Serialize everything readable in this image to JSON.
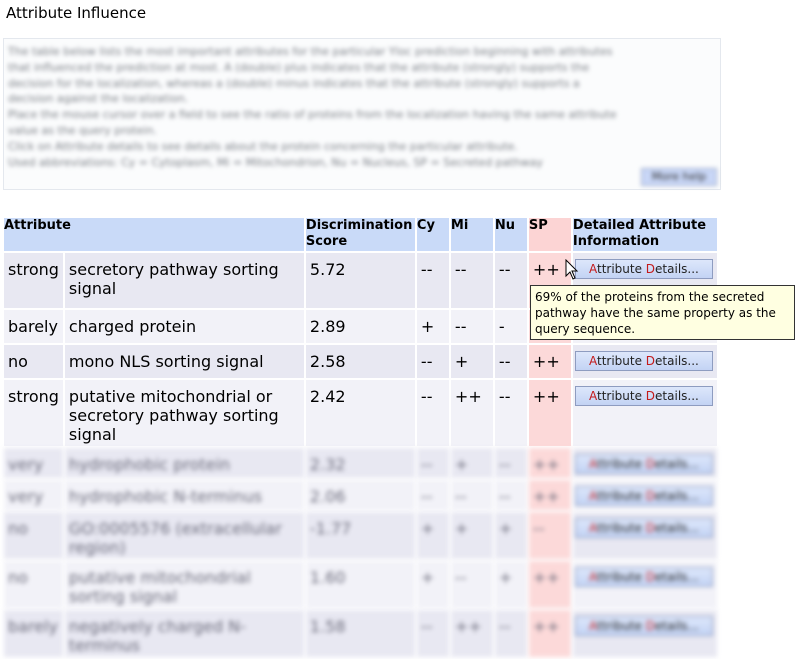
{
  "page": {
    "title": "Attribute Influence",
    "help_text": "The table below lists the most important attributes for the particular Yloc prediction beginning with attributes that influenced the prediction at most. A (double) plus indicates that the attribute (strongly) supports the decision for the localization, whereas a (double) minus indicates that the attribute (strongly) supports a decision against the localization.\nPlace the mouse cursor over a field to see the ratio of proteins from the localization having the same attribute value as the query protein.\nClick on Attribute details to see details about the protein concerning the particular attribute.\nUsed abbreviations: Cy = Cytoplasm, Mi = Mitochondrion, Nu = Nucleus, SP = Secreted pathway",
    "more_help_label": "More help"
  },
  "table": {
    "headers": {
      "attribute": "Attribute",
      "score": "Discrimination Score",
      "cy": "Cy",
      "mi": "Mi",
      "nu": "Nu",
      "sp": "SP",
      "details": "Detailed Attribute Information"
    },
    "button": {
      "pre": "A",
      "a": "ttribute ",
      "d": "D",
      "post": "etails..."
    },
    "rows": [
      {
        "strength": "strong",
        "attribute": "secretory pathway sorting signal",
        "score": "5.72",
        "cy": "--",
        "mi": "--",
        "nu": "--",
        "sp": "++"
      },
      {
        "strength": "barely",
        "attribute": "charged protein",
        "score": "2.89",
        "cy": "+",
        "mi": "--",
        "nu": "-",
        "sp": ""
      },
      {
        "strength": "no",
        "attribute": "mono NLS sorting signal",
        "score": "2.58",
        "cy": "--",
        "mi": "+",
        "nu": "--",
        "sp": "++"
      },
      {
        "strength": "strong",
        "attribute": "putative mitochondrial or secretory pathway sorting signal",
        "score": "2.42",
        "cy": "--",
        "mi": "++",
        "nu": "--",
        "sp": "++"
      },
      {
        "strength": "very",
        "attribute": "hydrophobic protein",
        "score": "2.32",
        "cy": "--",
        "mi": "+",
        "nu": "--",
        "sp": "++"
      },
      {
        "strength": "very",
        "attribute": "hydrophobic N-terminus",
        "score": "2.06",
        "cy": "--",
        "mi": "--",
        "nu": "--",
        "sp": "++"
      },
      {
        "strength": "no",
        "attribute": "GO:0005576 (extracellular region)",
        "score": "-1.77",
        "cy": "+",
        "mi": "+",
        "nu": "+",
        "sp": "--"
      },
      {
        "strength": "no",
        "attribute": "putative mitochondrial sorting signal",
        "score": "1.60",
        "cy": "+",
        "mi": "--",
        "nu": "+",
        "sp": "++"
      },
      {
        "strength": "barely",
        "attribute": "negatively charged N-terminus",
        "score": "1.58",
        "cy": "--",
        "mi": "++",
        "nu": "--",
        "sp": "++"
      }
    ]
  },
  "tooltip": {
    "text": "69% of the proteins from the secreted pathway have the same property as the query sequence."
  }
}
